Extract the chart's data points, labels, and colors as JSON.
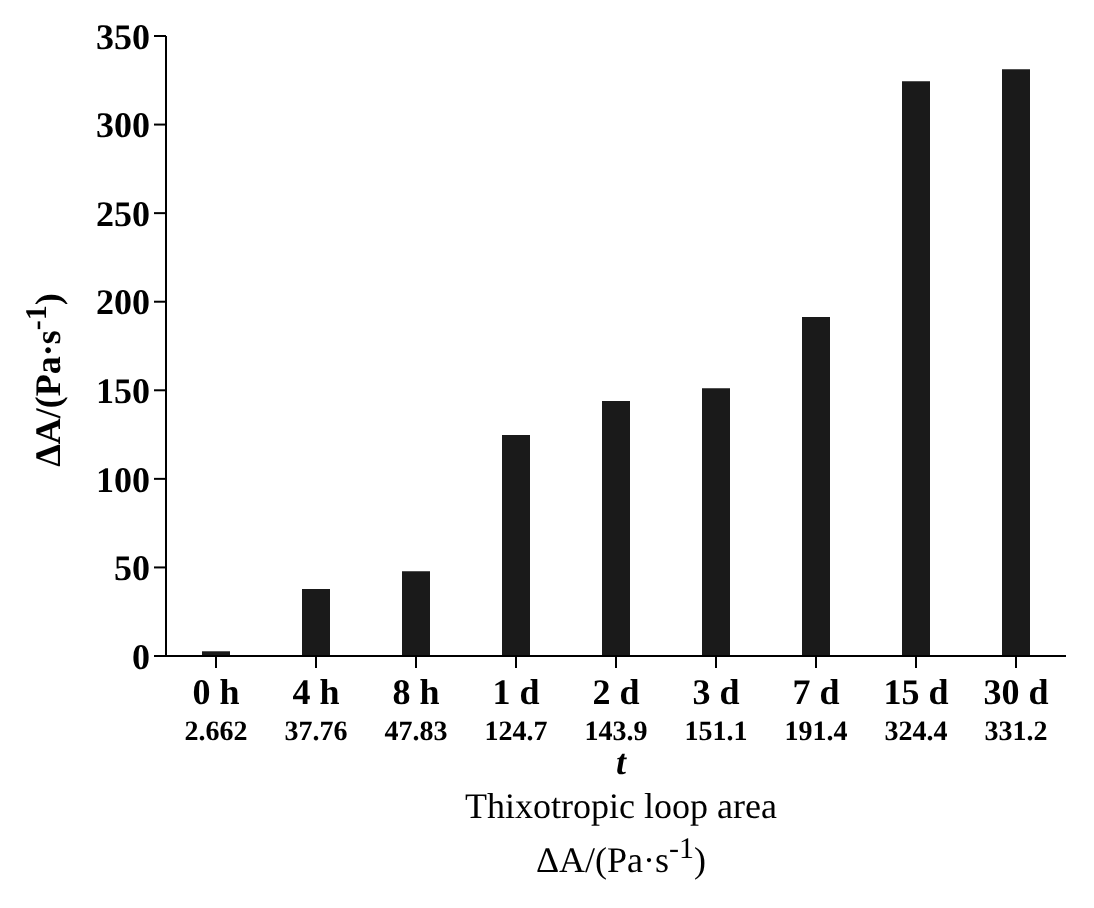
{
  "chart_data": {
    "type": "bar",
    "categories": [
      "0 h",
      "4 h",
      "8 h",
      "1 d",
      "2 d",
      "3 d",
      "7 d",
      "15 d",
      "30 d"
    ],
    "values": [
      2.662,
      37.76,
      47.83,
      124.7,
      143.9,
      151.1,
      191.4,
      324.4,
      331.2
    ],
    "color": "#1a1a1a",
    "ylim": [
      0,
      350
    ],
    "yticks": [
      0,
      50,
      100,
      150,
      200,
      250,
      300,
      350
    ],
    "ylabel": "ΔA/(Pa·s$^{-1}$)",
    "xlabel": "t",
    "annotations": [
      "Thixotropic loop area",
      "ΔA/(Pa·s$^{-1}$)"
    ],
    "data_labels": true,
    "grid": false
  }
}
